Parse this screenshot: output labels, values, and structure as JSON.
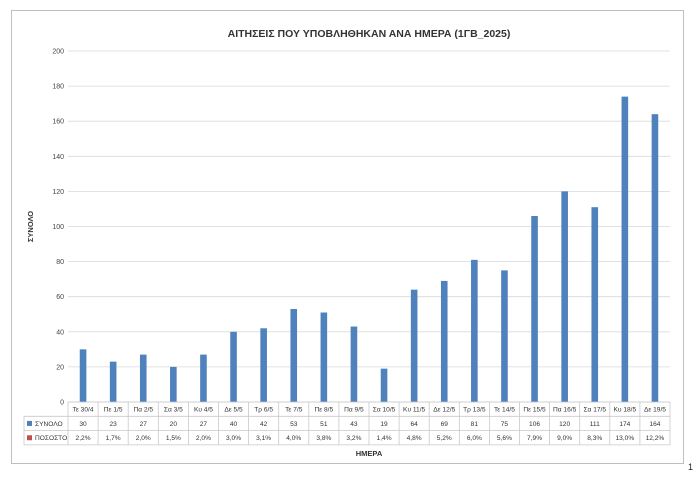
{
  "page_number": "1",
  "chart_data": {
    "type": "bar",
    "title": "ΑΙΤΗΣΕΙΣ ΠΟΥ ΥΠΟΒΛΗΘΗΚΑΝ ΑΝΑ ΗΜΕΡΑ (1ΓΒ_2025)",
    "xlabel": "ΗΜΕΡΑ",
    "ylabel": "ΣΥΝΟΛΟ",
    "ylim": [
      0,
      200
    ],
    "yticks": [
      0,
      20,
      40,
      60,
      80,
      100,
      120,
      140,
      160,
      180,
      200
    ],
    "grid": true,
    "categories": [
      "Τε 30/4",
      "Πε 1/5",
      "Πα 2/5",
      "Σα 3/5",
      "Κυ 4/5",
      "Δε 5/5",
      "Τρ 6/5",
      "Τε 7/5",
      "Πε 8/5",
      "Πα 9/5",
      "Σα 10/5",
      "Κυ 11/5",
      "Δε 12/5",
      "Τρ 13/5",
      "Τε 14/5",
      "Πε 15/5",
      "Πα 16/5",
      "Σα 17/5",
      "Κυ 18/5",
      "Δε 19/5"
    ],
    "series": [
      {
        "name": "ΣΥΝΟΛΟ",
        "color": "#4f81bd",
        "values": [
          30,
          23,
          27,
          20,
          27,
          40,
          42,
          53,
          51,
          43,
          19,
          64,
          69,
          81,
          75,
          106,
          120,
          111,
          174,
          164
        ]
      },
      {
        "name": "ΠΟΣΟΣΤΟ",
        "color": "#c0504d",
        "labels": [
          "2,2%",
          "1,7%",
          "2,0%",
          "1,5%",
          "2,0%",
          "3,0%",
          "3,1%",
          "4,0%",
          "3,8%",
          "3,2%",
          "1,4%",
          "4,8%",
          "5,2%",
          "6,0%",
          "5,6%",
          "7,9%",
          "9,0%",
          "8,3%",
          "13,0%",
          "12,2%"
        ]
      }
    ]
  }
}
